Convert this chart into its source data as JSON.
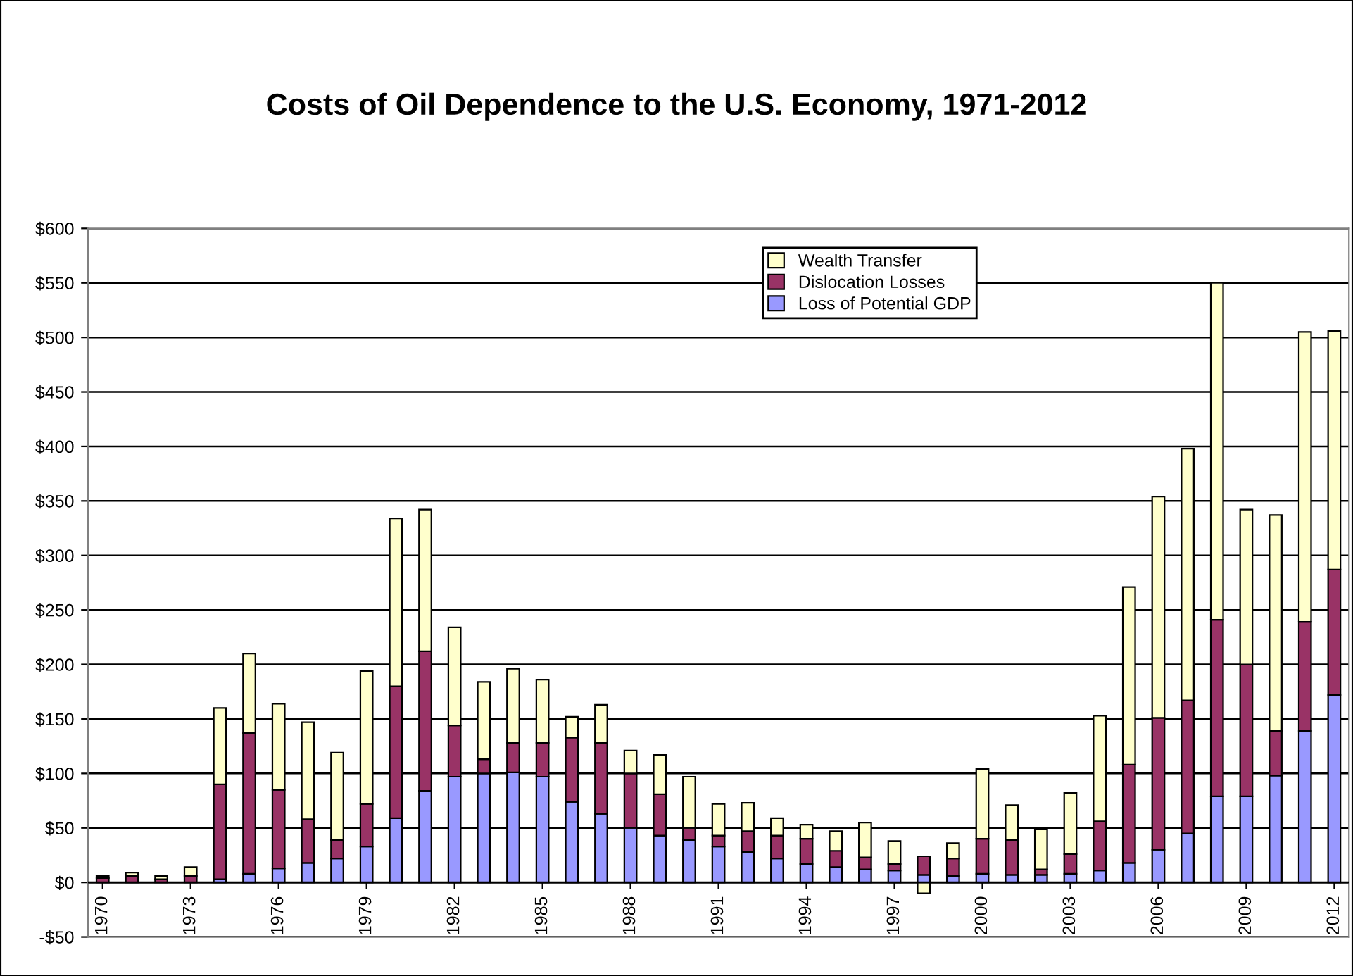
{
  "chart_data": {
    "type": "bar",
    "title": "Costs of Oil Dependence to the U.S. Economy, 1971-2012",
    "stacked": true,
    "categories": [
      "1970",
      null,
      null,
      "1973",
      null,
      null,
      "1976",
      null,
      null,
      "1979",
      null,
      null,
      "1982",
      null,
      null,
      "1985",
      null,
      null,
      "1988",
      null,
      null,
      "1991",
      null,
      null,
      "1994",
      null,
      null,
      "1997",
      null,
      null,
      "2000",
      null,
      null,
      "2003",
      null,
      null,
      "2006",
      null,
      null,
      "2009",
      null,
      null,
      "2012"
    ],
    "series": [
      {
        "name": "Loss of Potential GDP",
        "color": "#9999ff",
        "values": [
          null,
          null,
          null,
          null,
          3,
          8,
          13,
          18,
          22,
          33,
          59,
          84,
          97,
          100,
          101,
          97,
          74,
          63,
          50,
          43,
          39,
          33,
          28,
          22,
          17,
          14,
          12,
          11,
          7,
          6,
          8,
          7,
          7,
          8,
          11,
          18,
          30,
          45,
          79,
          79,
          98,
          139,
          172
        ]
      },
      {
        "name": "Dislocation Losses",
        "color": "#993366",
        "values": [
          4,
          6,
          3,
          6,
          87,
          129,
          72,
          40,
          17,
          39,
          121,
          128,
          47,
          13,
          27,
          31,
          59,
          65,
          50,
          38,
          11,
          10,
          19,
          21,
          23,
          15,
          11,
          6,
          17,
          16,
          32,
          32,
          5,
          18,
          45,
          90,
          121,
          122,
          162,
          121,
          41,
          100,
          115
        ]
      },
      {
        "name": "Wealth Transfer",
        "color": "#ffffcc",
        "values": [
          2,
          3,
          3,
          8,
          70,
          73,
          79,
          89,
          80,
          122,
          154,
          130,
          90,
          71,
          68,
          58,
          19,
          35,
          21,
          36,
          47,
          29,
          26,
          16,
          13,
          18,
          32,
          21,
          -10,
          14,
          64,
          32,
          37,
          56,
          97,
          163,
          203,
          231,
          309,
          142,
          198,
          266,
          219
        ]
      }
    ],
    "ylim": [
      -50,
      600
    ],
    "yticks": [
      {
        "value": -50,
        "label": "-$50"
      },
      {
        "value": 0,
        "label": "$0"
      },
      {
        "value": 50,
        "label": "$50"
      },
      {
        "value": 100,
        "label": "$100"
      },
      {
        "value": 150,
        "label": "$150"
      },
      {
        "value": 200,
        "label": "$200"
      },
      {
        "value": 250,
        "label": "$250"
      },
      {
        "value": 300,
        "label": "$300"
      },
      {
        "value": 350,
        "label": "$350"
      },
      {
        "value": 400,
        "label": "$400"
      },
      {
        "value": 450,
        "label": "$450"
      },
      {
        "value": 500,
        "label": "$500"
      },
      {
        "value": 550,
        "label": "$550"
      },
      {
        "value": 600,
        "label": "$600"
      }
    ],
    "grid": "y",
    "legend": "top"
  }
}
